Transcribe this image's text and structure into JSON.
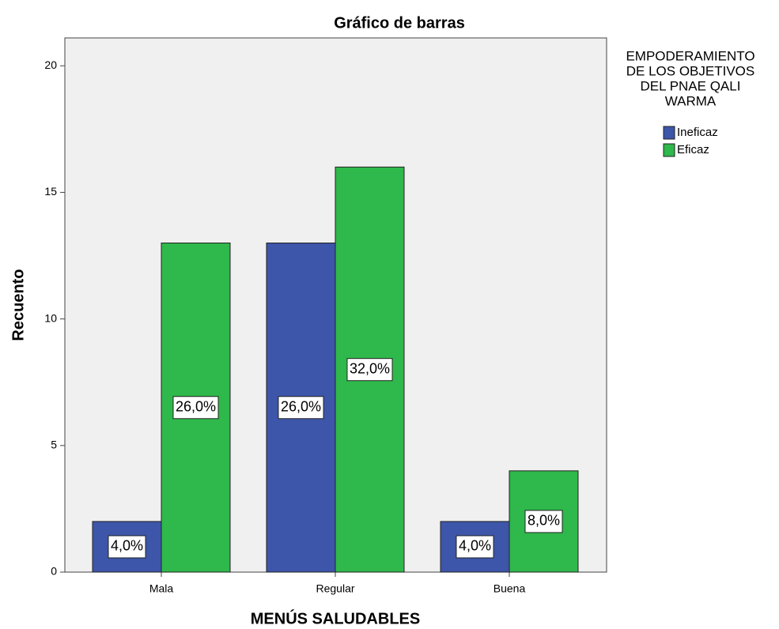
{
  "chart_data": {
    "type": "bar",
    "title": "Gráfico de barras",
    "x_label": "MENÚS SALUDABLES",
    "y_label": "Recuento",
    "categories": [
      "Mala",
      "Regular",
      "Buena"
    ],
    "series": [
      {
        "name": "Ineficaz",
        "color": "#3d56a9",
        "values": [
          2,
          13,
          2
        ],
        "value_labels": [
          "4,0%",
          "26,0%",
          "4,0%"
        ]
      },
      {
        "name": "Eficaz",
        "color": "#2fb84b",
        "values": [
          13,
          16,
          4
        ],
        "value_labels": [
          "26,0%",
          "32,0%",
          "8,0%"
        ]
      }
    ],
    "legend_title": [
      "EMPODERAMIENTO",
      "DE LOS OBJETIVOS",
      "DEL PNAE QALI",
      "WARMA"
    ],
    "legend_position": "right",
    "ylim": [
      0,
      21.1
    ],
    "yticks": [
      0,
      5,
      10,
      15,
      20
    ],
    "grid": false
  }
}
